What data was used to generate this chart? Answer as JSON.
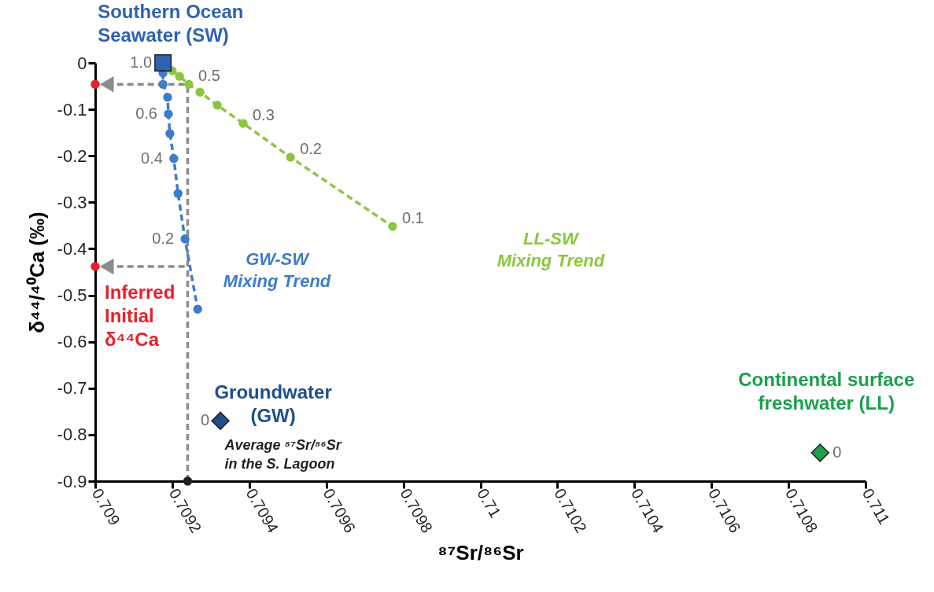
{
  "chart_data": {
    "type": "line",
    "xlabel": "⁸⁷Sr/⁸⁶Sr",
    "ylabel": "δ⁴⁴/⁴⁰Ca (‰)",
    "xlim": [
      0.709,
      0.711
    ],
    "xticks": [
      0.709,
      0.7092,
      0.7094,
      0.7096,
      0.7098,
      0.71,
      0.7102,
      0.7104,
      0.7106,
      0.7108,
      0.711
    ],
    "ylim": [
      -0.9,
      0
    ],
    "yticks": [
      0,
      -0.1,
      -0.2,
      -0.3,
      -0.4,
      -0.5,
      -0.6,
      -0.7,
      -0.8,
      -0.9
    ],
    "grid": false,
    "series": [
      {
        "color": "#8c8c8c",
        "line_style": "dashed",
        "marker": "none",
        "x": [
          0.70924,
          0.70924
        ],
        "values": [
          -0.9,
          -0.046
        ]
      },
      {
        "color": "#8c8c8c",
        "line_style": "dashed",
        "marker": "triangle",
        "x": [
          0.70924,
          0.70903
        ],
        "values": [
          -0.046,
          -0.046
        ]
      },
      {
        "color": "#8c8c8c",
        "line_style": "dashed",
        "marker": "triangle",
        "x": [
          0.70924,
          0.70903
        ],
        "values": [
          -0.438,
          -0.438
        ]
      },
      {
        "name": "GW-SW\nMixing Trend",
        "color": "#3d7cc9",
        "line_style": "dashed",
        "marker": "circle",
        "x": [
          0.709176,
          0.709176,
          0.709188,
          0.70919,
          0.709194,
          0.709204,
          0.709215,
          0.709233,
          0.709266
        ],
        "values": [
          -0.022,
          -0.046,
          -0.074,
          -0.11,
          -0.152,
          -0.206,
          -0.281,
          -0.379,
          -0.53
        ]
      },
      {
        "name": "LL-SW\nMixing Trend",
        "color": "#8cc63f",
        "line_style": "dashed",
        "marker": "circle",
        "x": [
          0.7092,
          0.709219,
          0.709243,
          0.709272,
          0.709317,
          0.709384,
          0.709507,
          0.709772
        ],
        "values": [
          -0.017,
          -0.029,
          -0.046,
          -0.063,
          -0.091,
          -0.13,
          -0.203,
          -0.352
        ]
      },
      {
        "name": "Southern Ocean\nSeawater (SW)",
        "type": "scatter",
        "color": "#2f62b0",
        "marker": "square",
        "x": [
          0.709176
        ],
        "values": [
          0
        ]
      },
      {
        "name": "Groundwater\n(GW)",
        "type": "scatter",
        "color": "#1d4f8c",
        "marker": "diamond",
        "x": [
          0.709325
        ],
        "values": [
          -0.77
        ]
      },
      {
        "name": "Continental surface\nfreshwater (LL)",
        "type": "scatter",
        "color": "#1ba04c",
        "marker": "diamond",
        "x": [
          0.710882
        ],
        "values": [
          -0.839
        ]
      },
      {
        "name": "Inferred\nInitial\nδ⁴⁴Ca",
        "type": "scatter",
        "color": "#e8202a",
        "marker": "circle",
        "x": [
          0.709,
          0.709
        ],
        "values": [
          -0.046,
          -0.438
        ]
      },
      {
        "type": "scatter",
        "color": "#231f20",
        "marker": "circle",
        "x": [
          0.70924
        ],
        "values": [
          -0.9
        ]
      }
    ],
    "annotations": [
      {
        "text": "1.0",
        "x": 0.709176,
        "y": 0
      },
      {
        "text": "0.6",
        "x": 0.70919,
        "y": -0.11
      },
      {
        "text": "0.4",
        "x": 0.709204,
        "y": -0.206
      },
      {
        "text": "0.2",
        "x": 0.709233,
        "y": -0.379
      },
      {
        "text": "0",
        "x": 0.709325,
        "y": -0.77
      },
      {
        "text": "0.5",
        "x": 0.709243,
        "y": -0.046
      },
      {
        "text": "0.3",
        "x": 0.709384,
        "y": -0.13
      },
      {
        "text": "0.2",
        "x": 0.709507,
        "y": -0.203
      },
      {
        "text": "0.1",
        "x": 0.709772,
        "y": -0.352
      },
      {
        "text": "0",
        "x": 0.710882,
        "y": -0.839
      },
      {
        "text": "Average ⁸⁷Sr/⁸⁶Sr\nin the S. Lagoon",
        "x": 0.70924,
        "y": -0.9
      }
    ]
  }
}
